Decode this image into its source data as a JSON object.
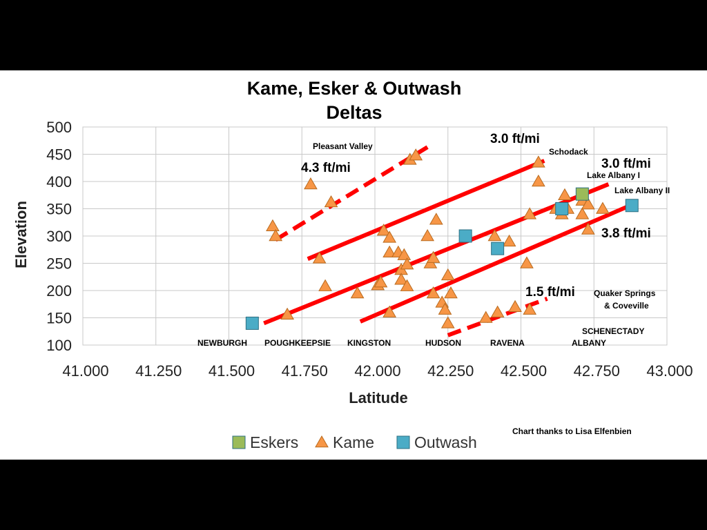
{
  "chart_data": {
    "type": "scatter",
    "title_lines": [
      "Kame, Esker & Outwash",
      "Deltas"
    ],
    "xlabel": "Latitude",
    "ylabel": "Elevation",
    "xlim": [
      41.0,
      43.0
    ],
    "ylim": [
      100,
      500
    ],
    "x_ticks": [
      "41.000",
      "41.250",
      "41.500",
      "41.750",
      "42.000",
      "42.250",
      "42.500",
      "42.750",
      "43.000"
    ],
    "y_ticks": [
      "100",
      "150",
      "200",
      "250",
      "300",
      "350",
      "400",
      "450",
      "500"
    ],
    "grid": true,
    "legend_position": "bottom",
    "series": [
      {
        "name": "Eskers",
        "marker": "square",
        "color": "#9BBB59",
        "points": [
          [
            42.71,
            377
          ]
        ]
      },
      {
        "name": "Kame",
        "marker": "triangle",
        "color": "#F79646",
        "points": [
          [
            41.65,
            318
          ],
          [
            41.66,
            300
          ],
          [
            41.7,
            156
          ],
          [
            41.78,
            395
          ],
          [
            41.81,
            259
          ],
          [
            41.83,
            208
          ],
          [
            41.85,
            362
          ],
          [
            41.94,
            195
          ],
          [
            42.01,
            210
          ],
          [
            42.02,
            215
          ],
          [
            42.03,
            310
          ],
          [
            42.05,
            297
          ],
          [
            42.05,
            270
          ],
          [
            42.05,
            160
          ],
          [
            42.08,
            270
          ],
          [
            42.09,
            238
          ],
          [
            42.09,
            220
          ],
          [
            42.1,
            265
          ],
          [
            42.11,
            208
          ],
          [
            42.11,
            248
          ],
          [
            42.12,
            440
          ],
          [
            42.14,
            448
          ],
          [
            42.18,
            300
          ],
          [
            42.19,
            250
          ],
          [
            42.2,
            260
          ],
          [
            42.2,
            195
          ],
          [
            42.21,
            330
          ],
          [
            42.23,
            178
          ],
          [
            42.24,
            165
          ],
          [
            42.25,
            140
          ],
          [
            42.25,
            228
          ],
          [
            42.26,
            195
          ],
          [
            42.38,
            150
          ],
          [
            42.41,
            300
          ],
          [
            42.42,
            160
          ],
          [
            42.46,
            290
          ],
          [
            42.48,
            170
          ],
          [
            42.52,
            250
          ],
          [
            42.53,
            340
          ],
          [
            42.53,
            165
          ],
          [
            42.56,
            435
          ],
          [
            42.56,
            400
          ],
          [
            42.62,
            350
          ],
          [
            42.64,
            340
          ],
          [
            42.65,
            375
          ],
          [
            42.66,
            350
          ],
          [
            42.71,
            340
          ],
          [
            42.71,
            365
          ],
          [
            42.73,
            312
          ],
          [
            42.73,
            358
          ],
          [
            42.78,
            350
          ]
        ]
      },
      {
        "name": "Outwash",
        "marker": "square",
        "color": "#4BACC6",
        "points": [
          [
            41.58,
            140
          ],
          [
            42.31,
            300
          ],
          [
            42.42,
            277
          ],
          [
            42.64,
            350
          ],
          [
            42.88,
            356
          ]
        ]
      }
    ],
    "trend_lines": [
      {
        "label": "4.3 ft/mi",
        "dashed": true,
        "from": [
          41.66,
          293
        ],
        "to": [
          42.18,
          463
        ]
      },
      {
        "label": "3.0 ft/mi",
        "dashed": false,
        "from": [
          41.77,
          258
        ],
        "to": [
          42.58,
          438
        ]
      },
      {
        "label": "3.0 ft/mi",
        "dashed": false,
        "from": [
          41.62,
          140
        ],
        "to": [
          42.8,
          395
        ]
      },
      {
        "label": "3.8 ft/mi",
        "dashed": false,
        "from": [
          41.95,
          143
        ],
        "to": [
          42.87,
          355
        ]
      },
      {
        "label": "1.5 ft/mi",
        "dashed": true,
        "from": [
          42.25,
          118
        ],
        "to": [
          42.59,
          185
        ]
      }
    ],
    "slope_labels": [
      "3.0 ft/mi",
      "3.0 ft/mi",
      "4.3 ft/mi",
      "3.8 ft/mi",
      "1.5 ft/mi"
    ],
    "place_labels": [
      "Pleasant Valley",
      "Schodack",
      "Lake Albany I",
      "Lake Albany II",
      "Quaker Springs",
      "& Coveville",
      "SCHENECTADY"
    ],
    "city_labels": [
      "NEWBURGH",
      "POUGHKEEPSIE",
      "KINGSTON",
      "HUDSON",
      "RAVENA",
      "ALBANY"
    ],
    "credit": "Chart thanks to Lisa Elfenbien",
    "trend_color": "#FF0000"
  }
}
